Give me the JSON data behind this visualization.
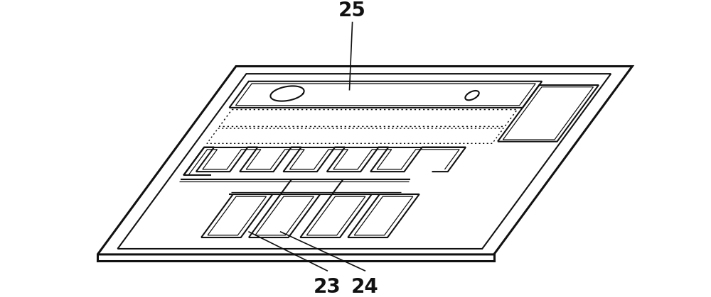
{
  "bg_color": "#ffffff",
  "line_color": "#111111",
  "label_25": "25",
  "label_23": "23",
  "label_24": "24",
  "label_fontsize": 20,
  "fig_width": 10.0,
  "fig_height": 4.19,
  "dpi": 100,
  "chip_bl": [
    0.9,
    0.38
  ],
  "chip_br": [
    7.2,
    0.38
  ],
  "chip_depth": [
    2.2,
    3.0
  ],
  "lw_thick": 2.2,
  "lw_med": 1.5,
  "lw_thin": 0.9
}
